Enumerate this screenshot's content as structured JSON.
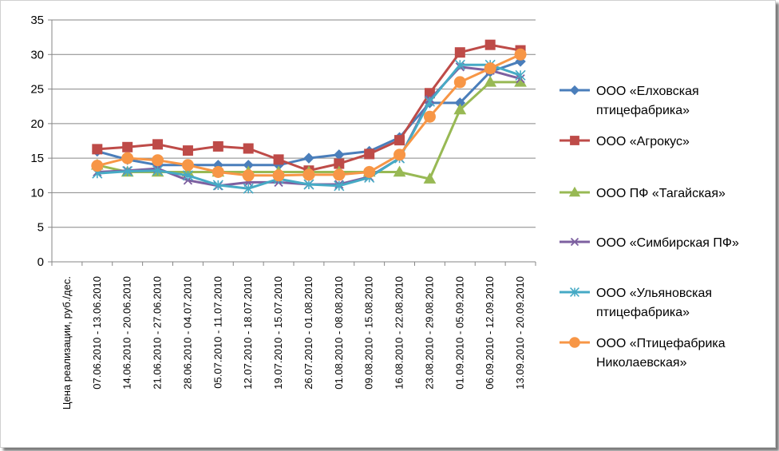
{
  "chart_data": {
    "type": "line",
    "ylim": [
      0,
      35
    ],
    "y_ticks": [
      0,
      5,
      10,
      15,
      20,
      25,
      30,
      35
    ],
    "grid": "horizontal",
    "legend_position": "right",
    "categories": [
      "Цена реализации, руб./дес.",
      "07.06.2010 - 13.06.2010",
      "14.06.2010 - 20.06.2010",
      "21.06.2010 - 27.06.2010",
      "28.06.2010 - 04.07.2010",
      "05.07.2010 - 11.07.2010",
      "12.07.2010 - 18.07.2010",
      "19.07.2010 - 15.07.2010",
      "26.07.2010 - 01.08.2010",
      "01.08.2010 - 08.08.2010",
      "09.08.2010 - 15.08.2010",
      "16.08.2010 - 22.08.2010",
      "23.08.2010 - 29.08.2010",
      "01.09.2010 - 05.09.2010",
      "06.09.2010 - 12.09.2010",
      "13.09.2010 - 20.09.2010"
    ],
    "series": [
      {
        "name": "ООО «Елховская птицефабрика»",
        "legend_lines": [
          "ООО «Елховская",
          "птицефабрика»"
        ],
        "color": "#4a7ebb",
        "marker": "diamond",
        "values": [
          null,
          16,
          14.8,
          14,
          14,
          14,
          14,
          14,
          15,
          15.5,
          16,
          18,
          23,
          23,
          27.5,
          29
        ]
      },
      {
        "name": "ООО «Агрокус»",
        "legend_lines": [
          "ООО «Агрокус»"
        ],
        "color": "#be4b48",
        "marker": "square",
        "values": [
          null,
          16.3,
          16.6,
          17,
          16.1,
          16.7,
          16.4,
          14.8,
          13.2,
          14.2,
          15.6,
          17.6,
          24.4,
          30.3,
          31.4,
          30.6
        ]
      },
      {
        "name": "ООО ПФ «Тагайская»",
        "legend_lines": [
          "ООО ПФ «Тагайская»"
        ],
        "color": "#98b954",
        "marker": "triangle",
        "values": [
          null,
          14,
          13,
          13,
          13,
          13,
          13,
          13,
          13,
          13,
          13,
          13,
          12,
          22,
          26,
          26
        ]
      },
      {
        "name": "ООО «Симбирская ПФ»",
        "legend_lines": [
          "ООО «Симбирская ПФ»"
        ],
        "color": "#7d60a0",
        "marker": "x",
        "values": [
          null,
          13,
          13.2,
          13.5,
          11.8,
          11,
          11.5,
          11.5,
          11.2,
          11.2,
          12.3,
          15,
          23.5,
          28.2,
          27.7,
          26.5
        ]
      },
      {
        "name": "ООО «Ульяновская птицефабрика»",
        "legend_lines": [
          "ООО  «Ульяновская",
          "птицефабрика»"
        ],
        "color": "#46aac5",
        "marker": "asterisk",
        "values": [
          null,
          12.8,
          13.1,
          13.2,
          12.5,
          11.1,
          10.6,
          12,
          11.2,
          11,
          12.2,
          15,
          23.2,
          28.5,
          28.5,
          27
        ]
      },
      {
        "name": "ООО «Птицефабрика Николаевская»",
        "legend_lines": [
          "ООО «Птицефабрика",
          "Николаевская»"
        ],
        "color": "#f79646",
        "marker": "circle",
        "values": [
          null,
          13.9,
          15,
          14.7,
          14,
          13,
          12.5,
          12.5,
          12.6,
          12.6,
          13,
          15.5,
          21,
          26,
          28,
          30
        ]
      }
    ]
  }
}
